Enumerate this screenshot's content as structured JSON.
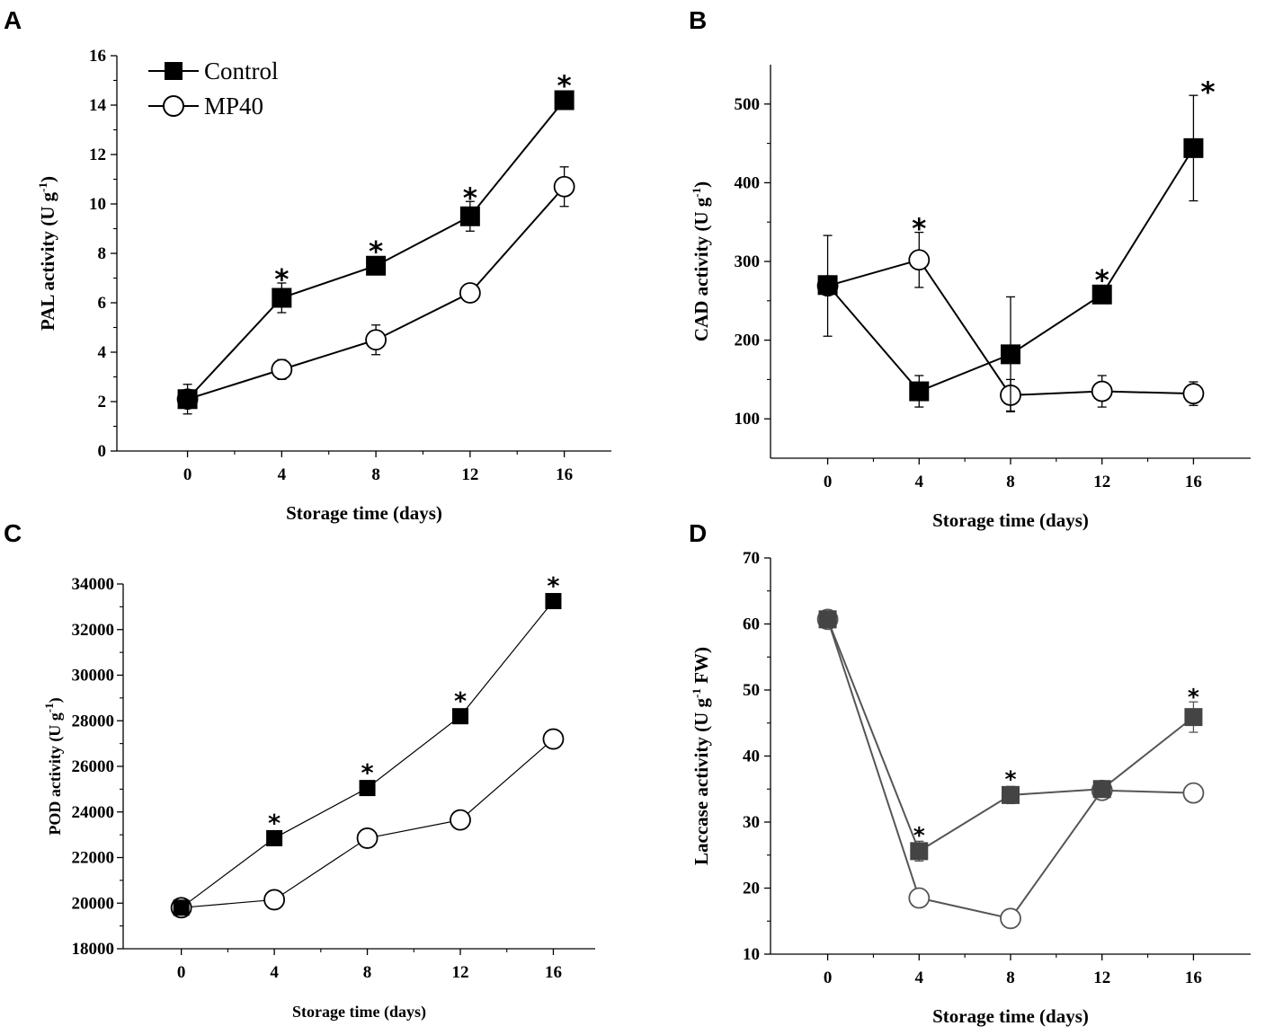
{
  "figure": {
    "panel_letters": [
      "A",
      "B",
      "C",
      "D"
    ]
  },
  "legend": {
    "control_label": "Control",
    "mp40_label": "MP40"
  },
  "chart_data": [
    {
      "panel": "A",
      "type": "line",
      "title": "",
      "xlabel": "Storage time (days)",
      "ylabel": "PAL activity (U g-1)",
      "ylabel_parts": [
        "PAL activity  (U g",
        "-1",
        ")"
      ],
      "x": [
        0,
        4,
        8,
        12,
        16
      ],
      "xticks": [
        0,
        4,
        8,
        12,
        16
      ],
      "xlim": [
        -3,
        18
      ],
      "ylim": [
        0,
        16
      ],
      "yticks": [
        0,
        2,
        4,
        6,
        8,
        10,
        12,
        14,
        16
      ],
      "legend": "top-left",
      "grid": false,
      "series": [
        {
          "name": "Control",
          "marker": "filled-square",
          "values": [
            2.1,
            6.2,
            7.5,
            9.5,
            14.2
          ],
          "errors": [
            0.3,
            0.6,
            0.2,
            0.6,
            0.3
          ]
        },
        {
          "name": "MP40",
          "marker": "open-circle",
          "values": [
            2.1,
            3.3,
            4.5,
            6.4,
            10.7
          ],
          "errors": [
            0.6,
            0.4,
            0.6,
            0.2,
            0.8
          ]
        }
      ],
      "significance_x": [
        4,
        8,
        12,
        16
      ],
      "significance_mark": "*"
    },
    {
      "panel": "B",
      "type": "line",
      "title": "",
      "xlabel": "Storage time (days)",
      "ylabel": "CAD activity (U g-1)",
      "ylabel_parts": [
        "CAD activity (U g",
        "-1",
        ")"
      ],
      "x": [
        0,
        4,
        8,
        12,
        16
      ],
      "xticks": [
        0,
        4,
        8,
        12,
        16
      ],
      "xlim": [
        -2.5,
        18.5
      ],
      "ylim": [
        50,
        550
      ],
      "yticks": [
        100,
        200,
        300,
        400,
        500
      ],
      "legend": "none",
      "grid": false,
      "series": [
        {
          "name": "Control",
          "marker": "filled-square",
          "values": [
            270,
            135,
            182,
            258,
            444
          ],
          "errors": [
            10,
            20,
            73,
            5,
            67
          ]
        },
        {
          "name": "MP40",
          "marker": "open-circle",
          "values": [
            269,
            302,
            130,
            135,
            132
          ],
          "errors": [
            64,
            35,
            20,
            20,
            15
          ]
        }
      ],
      "significance_x": [
        4,
        12,
        16
      ],
      "significance_mark": "*"
    },
    {
      "panel": "C",
      "type": "line",
      "title": "",
      "xlabel": "Storage time (days)",
      "ylabel": "POD activity (U g-1)",
      "ylabel_parts": [
        "POD activity (U g",
        "-1",
        ")"
      ],
      "x": [
        0,
        4,
        8,
        12,
        16
      ],
      "xticks": [
        0,
        4,
        8,
        12,
        16
      ],
      "xlim": [
        -2.5,
        17.8
      ],
      "ylim": [
        18000,
        34000
      ],
      "yticks": [
        18000,
        20000,
        22000,
        24000,
        26000,
        28000,
        30000,
        32000,
        34000
      ],
      "legend": "none",
      "grid": false,
      "series": [
        {
          "name": "Control",
          "marker": "filled-square",
          "values": [
            19800,
            22850,
            25050,
            28200,
            33250
          ],
          "errors": [
            150,
            150,
            150,
            150,
            150
          ]
        },
        {
          "name": "MP40",
          "marker": "open-circle",
          "values": [
            19800,
            20150,
            22850,
            23650,
            27200
          ],
          "errors": [
            300,
            300,
            300,
            300,
            300
          ]
        }
      ],
      "significance_x": [
        4,
        8,
        12,
        16
      ],
      "significance_mark": "*"
    },
    {
      "panel": "D",
      "type": "line",
      "title": "",
      "xlabel": "Storage time (days)",
      "ylabel": "Laccase activity (U g-1 FW)",
      "ylabel_parts": [
        "Laccase activity (U g",
        "-1",
        " FW)"
      ],
      "x": [
        0,
        4,
        8,
        12,
        16
      ],
      "xticks": [
        0,
        4,
        8,
        12,
        16
      ],
      "xlim": [
        -2.5,
        18.5
      ],
      "ylim": [
        10,
        70
      ],
      "yticks": [
        10,
        20,
        30,
        40,
        50,
        60,
        70
      ],
      "legend": "none",
      "grid": false,
      "series": [
        {
          "name": "Control",
          "marker": "filled-square",
          "values": [
            60.7,
            25.6,
            34.1,
            35.0,
            45.9
          ],
          "errors": [
            0.5,
            1.5,
            1.3,
            0.5,
            2.3
          ]
        },
        {
          "name": "MP40",
          "marker": "open-circle",
          "values": [
            60.7,
            18.5,
            15.4,
            34.8,
            34.4
          ],
          "errors": [
            0.5,
            0.5,
            0.3,
            0.5,
            0.8
          ]
        }
      ],
      "significance_x": [
        4,
        8,
        16
      ],
      "significance_mark": "*"
    }
  ]
}
